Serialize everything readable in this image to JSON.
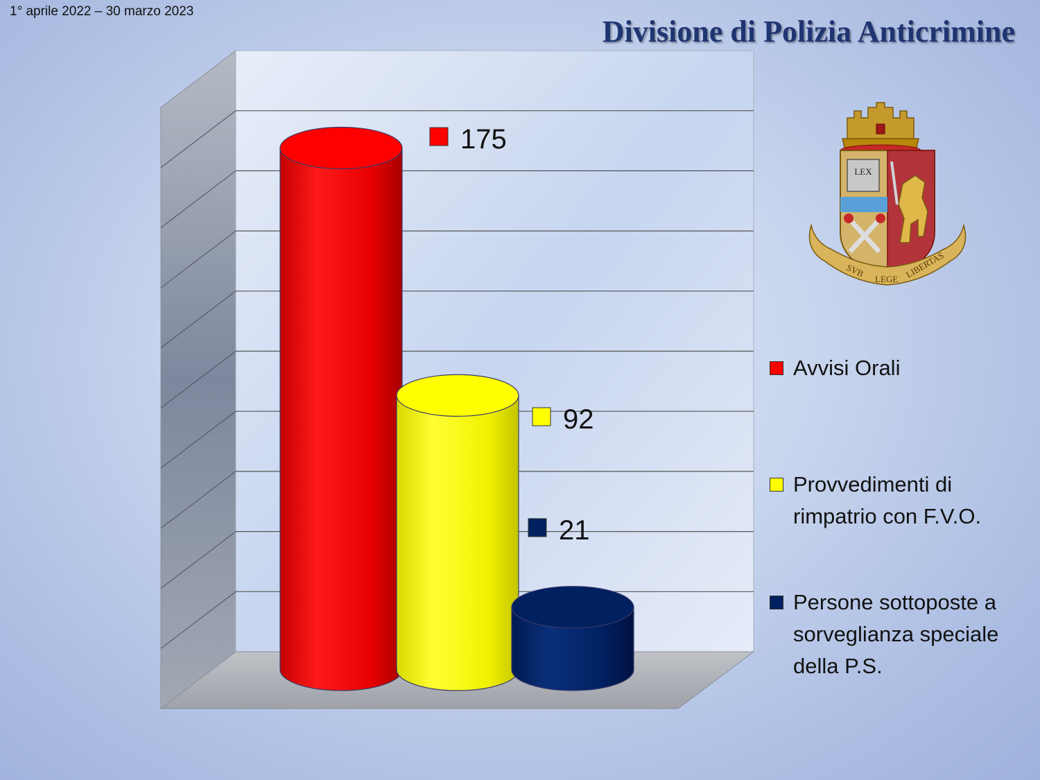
{
  "header": {
    "date_range": "1° aprile 2022 – 30 marzo 2023",
    "title": "Divisione di Polizia Anticrimine"
  },
  "emblem": {
    "book_text": "LEX",
    "motto": [
      "SVB",
      "LEGE",
      "LIBERTAS"
    ]
  },
  "chart_data": {
    "type": "bar",
    "style": "3d-cylinder",
    "categories": [
      "Avvisi Orali",
      "Provvedimenti di rimpatrio con F.V.O.",
      "Persone sottoposte a sorveglianza speciale della P.S."
    ],
    "values": [
      175,
      92,
      21
    ],
    "value_labels": [
      "175",
      "92",
      "21"
    ],
    "colors": [
      "#ff0000",
      "#ffff00",
      "#002060"
    ],
    "ylim": [
      0,
      200
    ],
    "grid": true,
    "legend_position": "right"
  },
  "legend": {
    "items": [
      {
        "label": "Avvisi Orali",
        "color": "#ff0000"
      },
      {
        "label": "Provvedimenti di rimpatrio con F.V.O.",
        "color": "#ffff00"
      },
      {
        "label": "Persone sottoposte a sorveglianza speciale della P.S.",
        "color": "#002060"
      }
    ]
  }
}
